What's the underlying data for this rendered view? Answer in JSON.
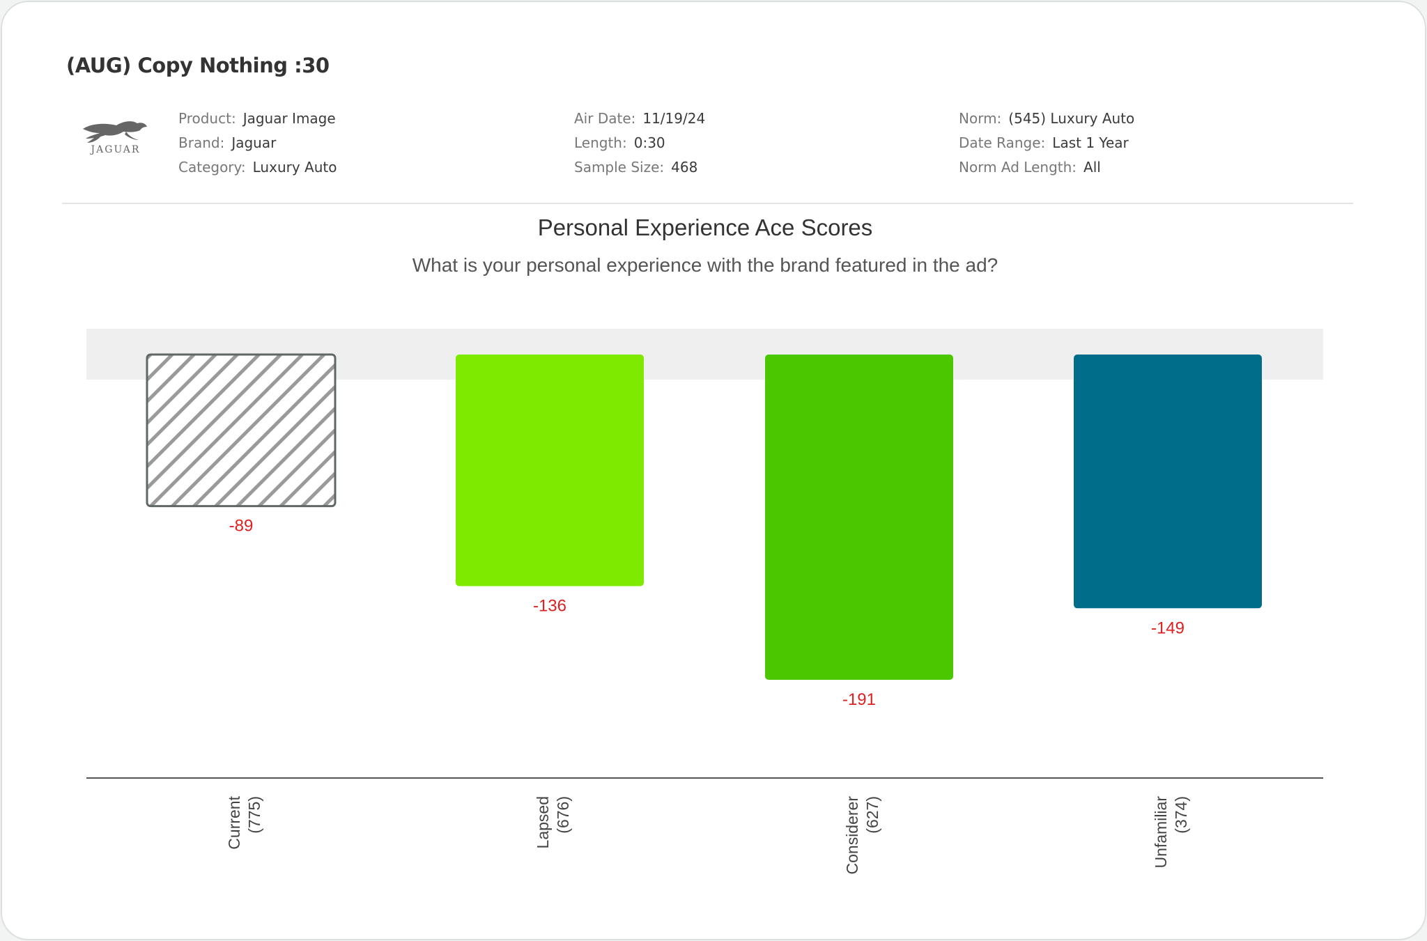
{
  "header": {
    "title": "(AUG) Copy Nothing :30",
    "logo_text": "JAGUAR"
  },
  "meta": {
    "col1": [
      {
        "key": "Product:",
        "value": "Jaguar Image"
      },
      {
        "key": "Brand:",
        "value": "Jaguar"
      },
      {
        "key": "Category:",
        "value": "Luxury Auto"
      }
    ],
    "col2": [
      {
        "key": "Air Date:",
        "value": "11/19/24"
      },
      {
        "key": "Length:",
        "value": "0:30"
      },
      {
        "key": "Sample Size:",
        "value": "468"
      }
    ],
    "col3": [
      {
        "key": "Norm:",
        "value": "(545) Luxury Auto"
      },
      {
        "key": "Date Range:",
        "value": "Last 1 Year"
      },
      {
        "key": "Norm Ad Length:",
        "value": "All"
      }
    ]
  },
  "chart_data": {
    "type": "bar",
    "title": "Personal Experience Ace Scores",
    "subtitle": "What is your personal experience with the brand featured in the ad?",
    "categories": [
      "Current",
      "Lapsed",
      "Considerer",
      "Unfamiliar"
    ],
    "sample_sizes": [
      "(775)",
      "(676)",
      "(627)",
      "(374)"
    ],
    "values": [
      -89,
      -136,
      -191,
      -149
    ],
    "labels": [
      "-89",
      "-136",
      "-191",
      "-149"
    ],
    "colors": [
      "hatched",
      "#7dea00",
      "#4bc700",
      "#006e8a"
    ],
    "label_color": "#e02020",
    "norm_band_color": "#efefef",
    "axis_color": "#555555",
    "hatch_color": "#9a9a9a",
    "hatch_border": "#5f6863",
    "xlabel": "",
    "ylabel": "",
    "ylim": [
      -250,
      0
    ],
    "grid": false
  }
}
